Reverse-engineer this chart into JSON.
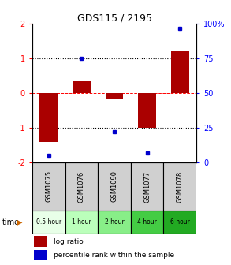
{
  "title": "GDS115 / 2195",
  "samples": [
    "GSM1075",
    "GSM1076",
    "GSM1090",
    "GSM1077",
    "GSM1078"
  ],
  "log_ratios": [
    -1.4,
    0.35,
    -0.15,
    -1.0,
    1.2
  ],
  "percentiles": [
    5,
    75,
    22,
    7,
    97
  ],
  "time_labels": [
    "0.5 hour",
    "1 hour",
    "2 hour",
    "4 hour",
    "6 hour"
  ],
  "time_colors": [
    "#e8ffe8",
    "#bbffbb",
    "#88ee88",
    "#44cc44",
    "#22aa22"
  ],
  "bar_color": "#aa0000",
  "dot_color": "#0000cc",
  "ylim": [
    -2,
    2
  ],
  "yticks_left": [
    -2,
    -1,
    0,
    1,
    2
  ],
  "right_labels": [
    "0",
    "25",
    "50",
    "75",
    "100%"
  ],
  "legend_log_ratio": "log ratio",
  "legend_percentile": "percentile rank within the sample"
}
